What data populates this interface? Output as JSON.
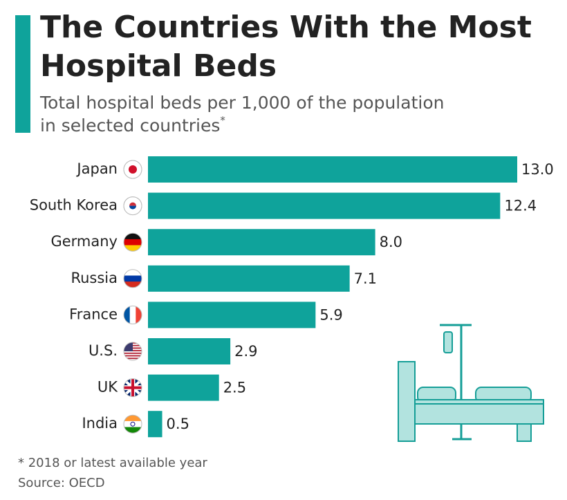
{
  "chart_data": {
    "type": "bar",
    "orientation": "horizontal",
    "title": "The Countries With the Most Hospital Beds",
    "subtitle": "Total hospital beds per 1,000 of the population in selected countries",
    "subtitle_mark": "*",
    "categories": [
      "Japan",
      "South Korea",
      "Germany",
      "Russia",
      "France",
      "U.S.",
      "UK",
      "India"
    ],
    "values": [
      13.0,
      12.4,
      8.0,
      7.1,
      5.9,
      2.9,
      2.5,
      0.5
    ],
    "value_labels": [
      "13.0",
      "12.4",
      "8.0",
      "7.1",
      "5.9",
      "2.9",
      "2.5",
      "0.5"
    ],
    "color": "#0fa39b",
    "footnote": "* 2018 or latest available year",
    "source": "Source: OECD"
  }
}
